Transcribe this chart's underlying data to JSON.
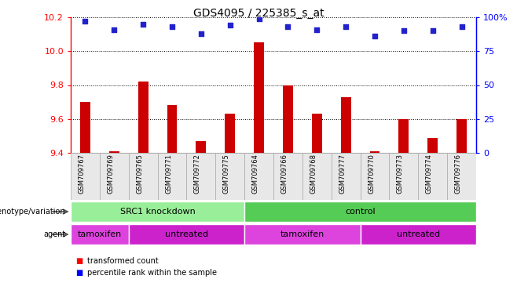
{
  "title": "GDS4095 / 225385_s_at",
  "samples": [
    "GSM709767",
    "GSM709769",
    "GSM709765",
    "GSM709771",
    "GSM709772",
    "GSM709775",
    "GSM709764",
    "GSM709766",
    "GSM709768",
    "GSM709777",
    "GSM709770",
    "GSM709773",
    "GSM709774",
    "GSM709776"
  ],
  "bar_values": [
    9.7,
    9.41,
    9.82,
    9.68,
    9.47,
    9.63,
    10.05,
    9.8,
    9.63,
    9.73,
    9.41,
    9.6,
    9.49,
    9.6
  ],
  "percentile_values": [
    97,
    91,
    95,
    93,
    88,
    94,
    99,
    93,
    91,
    93,
    86,
    90,
    90,
    93
  ],
  "ymin": 9.4,
  "ymax": 10.2,
  "yticks": [
    9.4,
    9.6,
    9.8,
    10.0,
    10.2
  ],
  "right_yticks": [
    0,
    25,
    50,
    75,
    100
  ],
  "bar_color": "#cc0000",
  "dot_color": "#2222cc",
  "genotype_groups": [
    {
      "label": "SRC1 knockdown",
      "start": 0,
      "end": 6,
      "color": "#99ee99"
    },
    {
      "label": "control",
      "start": 6,
      "end": 14,
      "color": "#55cc55"
    }
  ],
  "agent_groups": [
    {
      "label": "tamoxifen",
      "start": 0,
      "end": 2,
      "color": "#dd44dd"
    },
    {
      "label": "untreated",
      "start": 2,
      "end": 6,
      "color": "#cc22cc"
    },
    {
      "label": "tamoxifen",
      "start": 6,
      "end": 10,
      "color": "#dd44dd"
    },
    {
      "label": "untreated",
      "start": 10,
      "end": 14,
      "color": "#cc22cc"
    }
  ]
}
